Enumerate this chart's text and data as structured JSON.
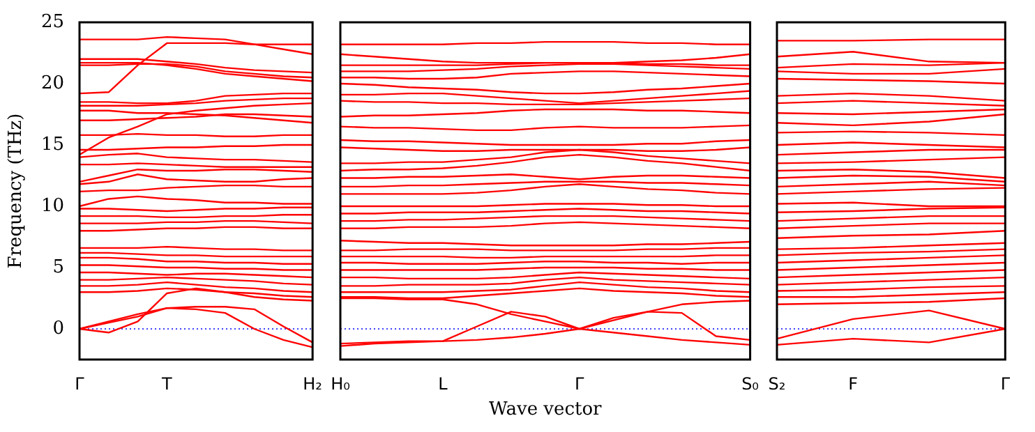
{
  "chart_data": [
    {
      "type": "line",
      "ylabel": "Frequency (THz)",
      "categories": [
        "Γ",
        null,
        null,
        "T",
        null,
        null,
        null,
        null,
        "H₂"
      ],
      "ylim": [
        -2.5,
        25
      ],
      "yticks": [
        0,
        5,
        10,
        15,
        20,
        25
      ],
      "ref_lines": [
        {
          "axis": "y",
          "value": 0,
          "label": null,
          "color": "#0000ff",
          "line_style": "dotted"
        }
      ],
      "series": [
        {
          "color": "#ff0000",
          "values": [
            0,
            0.6,
            1.2,
            1.7,
            1.6,
            1.3,
            0.0,
            -0.9,
            -1.5
          ]
        },
        {
          "color": "#ff0000",
          "values": [
            0,
            0.5,
            1.0,
            1.7,
            1.8,
            1.8,
            1.6,
            0.2,
            -1.1
          ]
        },
        {
          "color": "#ff0000",
          "values": [
            0,
            -0.3,
            0.6,
            2.9,
            3.3,
            3.0,
            2.6,
            2.4,
            2.3
          ]
        },
        {
          "color": "#ff0000",
          "values": [
            3.0,
            3.0,
            3.1,
            3.3,
            3.2,
            3.0,
            2.9,
            2.7,
            2.6
          ]
        },
        {
          "color": "#ff0000",
          "values": [
            3.5,
            3.5,
            3.6,
            3.8,
            3.6,
            3.4,
            3.3,
            3.1,
            3.0
          ]
        },
        {
          "color": "#ff0000",
          "values": [
            4.0,
            4.0,
            4.1,
            4.2,
            4.1,
            4.0,
            3.9,
            3.7,
            3.6
          ]
        },
        {
          "color": "#ff0000",
          "values": [
            4.6,
            4.6,
            4.5,
            4.4,
            4.5,
            4.5,
            4.4,
            4.3,
            4.2
          ]
        },
        {
          "color": "#ff0000",
          "values": [
            5.2,
            5.2,
            5.1,
            5.0,
            5.0,
            4.9,
            4.9,
            4.8,
            4.8
          ]
        },
        {
          "color": "#ff0000",
          "values": [
            5.8,
            5.8,
            5.7,
            5.5,
            5.5,
            5.4,
            5.4,
            5.3,
            5.3
          ]
        },
        {
          "color": "#ff0000",
          "values": [
            6.2,
            6.2,
            6.1,
            6.0,
            6.0,
            5.9,
            5.9,
            5.9,
            5.9
          ]
        },
        {
          "color": "#ff0000",
          "values": [
            6.6,
            6.6,
            6.6,
            6.7,
            6.6,
            6.5,
            6.5,
            6.4,
            6.4
          ]
        },
        {
          "color": "#ff0000",
          "values": [
            8.0,
            8.0,
            8.1,
            8.2,
            8.2,
            8.3,
            8.3,
            8.2,
            8.2
          ]
        },
        {
          "color": "#ff0000",
          "values": [
            8.6,
            8.6,
            8.6,
            8.7,
            8.7,
            8.8,
            8.8,
            8.7,
            8.6
          ]
        },
        {
          "color": "#ff0000",
          "values": [
            9.2,
            9.2,
            9.2,
            9.1,
            9.1,
            9.2,
            9.2,
            9.3,
            9.3
          ]
        },
        {
          "color": "#ff0000",
          "values": [
            9.8,
            9.8,
            9.7,
            9.6,
            9.7,
            9.8,
            9.8,
            9.9,
            9.9
          ]
        },
        {
          "color": "#ff0000",
          "values": [
            10.0,
            10.6,
            10.8,
            10.6,
            10.5,
            10.3,
            10.3,
            10.2,
            10.2
          ]
        },
        {
          "color": "#ff0000",
          "values": [
            11.2,
            11.3,
            11.3,
            11.5,
            11.6,
            11.7,
            11.7,
            11.6,
            11.6
          ]
        },
        {
          "color": "#ff0000",
          "values": [
            11.8,
            12.0,
            12.6,
            12.2,
            12.1,
            12.0,
            12.0,
            12.2,
            12.3
          ]
        },
        {
          "color": "#ff0000",
          "values": [
            12.0,
            12.5,
            13.0,
            12.9,
            12.9,
            13.0,
            13.0,
            12.9,
            12.8
          ]
        },
        {
          "color": "#ff0000",
          "values": [
            13.4,
            13.4,
            13.5,
            13.4,
            13.3,
            13.2,
            13.2,
            13.2,
            13.2
          ]
        },
        {
          "color": "#ff0000",
          "values": [
            14.0,
            14.2,
            14.3,
            14.0,
            13.9,
            13.8,
            13.8,
            13.7,
            13.6
          ]
        },
        {
          "color": "#ff0000",
          "values": [
            14.6,
            14.6,
            14.7,
            14.8,
            14.8,
            14.9,
            14.9,
            15.0,
            15.0
          ]
        },
        {
          "color": "#ff0000",
          "values": [
            14.2,
            15.6,
            16.5,
            17.5,
            17.8,
            18.0,
            18.2,
            18.3,
            18.4
          ]
        },
        {
          "color": "#ff0000",
          "values": [
            15.8,
            15.8,
            15.9,
            15.8,
            15.8,
            15.7,
            15.7,
            15.8,
            15.8
          ]
        },
        {
          "color": "#ff0000",
          "values": [
            17.0,
            17.0,
            17.1,
            17.2,
            17.3,
            17.5,
            17.5,
            17.4,
            17.3
          ]
        },
        {
          "color": "#ff0000",
          "values": [
            17.8,
            17.8,
            17.6,
            17.6,
            17.5,
            17.4,
            17.2,
            17.0,
            16.8
          ]
        },
        {
          "color": "#ff0000",
          "values": [
            18.2,
            18.2,
            18.2,
            18.3,
            18.4,
            18.6,
            18.7,
            18.8,
            18.8
          ]
        },
        {
          "color": "#ff0000",
          "values": [
            18.5,
            18.5,
            18.4,
            18.4,
            18.6,
            19.0,
            19.1,
            19.2,
            19.2
          ]
        },
        {
          "color": "#ff0000",
          "values": [
            19.2,
            19.3,
            21.5,
            23.3,
            23.3,
            23.3,
            23.2,
            23.2,
            23.2
          ]
        },
        {
          "color": "#ff0000",
          "values": [
            21.5,
            21.5,
            21.6,
            21.6,
            21.4,
            21.0,
            20.8,
            20.6,
            20.5
          ]
        },
        {
          "color": "#ff0000",
          "values": [
            22.0,
            22.0,
            22.0,
            21.8,
            21.6,
            21.3,
            21.1,
            21.0,
            20.9
          ]
        },
        {
          "color": "#ff0000",
          "values": [
            21.7,
            21.7,
            21.7,
            21.5,
            21.2,
            20.8,
            20.6,
            20.4,
            20.2
          ]
        },
        {
          "color": "#ff0000",
          "values": [
            23.6,
            23.6,
            23.6,
            23.8,
            23.7,
            23.6,
            23.2,
            22.8,
            22.4
          ]
        }
      ]
    },
    {
      "type": "line",
      "xlabel": "Wave vector",
      "categories": [
        "H₀",
        null,
        null,
        "L",
        null,
        null,
        null,
        "Γ",
        null,
        null,
        null,
        null,
        "S₀"
      ],
      "ylim": [
        -2.5,
        25
      ],
      "tick_labels": "x",
      "ref_lines": [
        {
          "axis": "y",
          "value": 0,
          "label": null,
          "color": "#0000ff",
          "line_style": "dotted"
        }
      ],
      "series": [
        {
          "color": "#ff0000",
          "values": [
            -1.2,
            -1.1,
            -1.0,
            -1.0,
            -0.9,
            -0.7,
            -0.4,
            0,
            -0.3,
            -0.6,
            -0.9,
            -1.1,
            -1.3
          ]
        },
        {
          "color": "#ff0000",
          "values": [
            -1.4,
            -1.2,
            -1.1,
            -1.0,
            0.2,
            1.4,
            1.0,
            0,
            0.9,
            1.4,
            1.3,
            -0.6,
            -0.9
          ]
        },
        {
          "color": "#ff0000",
          "values": [
            2.5,
            2.5,
            2.4,
            2.4,
            2.0,
            1.2,
            0.6,
            0,
            0.7,
            1.4,
            2.0,
            2.2,
            2.3
          ]
        },
        {
          "color": "#ff0000",
          "values": [
            2.6,
            2.6,
            2.5,
            2.5,
            2.7,
            2.9,
            3.1,
            3.3,
            3.1,
            3.0,
            2.9,
            2.7,
            2.6
          ]
        },
        {
          "color": "#ff0000",
          "values": [
            3.0,
            3.0,
            3.0,
            3.0,
            3.1,
            3.2,
            3.5,
            3.8,
            3.6,
            3.4,
            3.3,
            3.1,
            3.0
          ]
        },
        {
          "color": "#ff0000",
          "values": [
            3.5,
            3.5,
            3.6,
            3.6,
            3.6,
            3.7,
            4.0,
            4.2,
            4.0,
            3.9,
            3.8,
            3.7,
            3.6
          ]
        },
        {
          "color": "#ff0000",
          "values": [
            4.2,
            4.2,
            4.1,
            4.1,
            4.1,
            4.2,
            4.4,
            4.6,
            4.5,
            4.4,
            4.3,
            4.2,
            4.1
          ]
        },
        {
          "color": "#ff0000",
          "values": [
            4.8,
            4.8,
            4.8,
            4.8,
            4.8,
            4.9,
            5.0,
            5.0,
            5.0,
            4.9,
            4.9,
            4.8,
            4.8
          ]
        },
        {
          "color": "#ff0000",
          "values": [
            5.4,
            5.4,
            5.3,
            5.3,
            5.3,
            5.4,
            5.5,
            5.5,
            5.4,
            5.4,
            5.3,
            5.4,
            5.4
          ]
        },
        {
          "color": "#ff0000",
          "values": [
            5.9,
            5.9,
            5.9,
            5.9,
            5.8,
            5.8,
            5.9,
            5.9,
            5.9,
            5.9,
            5.9,
            6.0,
            6.0
          ]
        },
        {
          "color": "#ff0000",
          "values": [
            6.4,
            6.4,
            6.5,
            6.5,
            6.5,
            6.4,
            6.4,
            6.4,
            6.4,
            6.5,
            6.5,
            6.6,
            6.6
          ]
        },
        {
          "color": "#ff0000",
          "values": [
            7.2,
            7.1,
            7.0,
            7.0,
            6.9,
            6.8,
            6.8,
            6.8,
            6.8,
            6.9,
            6.9,
            7.0,
            7.1
          ]
        },
        {
          "color": "#ff0000",
          "values": [
            8.2,
            8.2,
            8.3,
            8.3,
            8.3,
            8.4,
            8.6,
            8.7,
            8.6,
            8.5,
            8.4,
            8.3,
            8.2
          ]
        },
        {
          "color": "#ff0000",
          "values": [
            8.8,
            8.8,
            8.9,
            8.9,
            9.0,
            9.1,
            9.2,
            9.2,
            9.2,
            9.1,
            9.0,
            8.9,
            8.8
          ]
        },
        {
          "color": "#ff0000",
          "values": [
            9.4,
            9.4,
            9.5,
            9.5,
            9.5,
            9.6,
            9.7,
            9.8,
            9.7,
            9.6,
            9.6,
            9.5,
            9.4
          ]
        },
        {
          "color": "#ff0000",
          "values": [
            10.0,
            10.0,
            10.0,
            10.0,
            10.0,
            10.1,
            10.2,
            10.2,
            10.2,
            10.1,
            10.1,
            10.0,
            10.0
          ]
        },
        {
          "color": "#ff0000",
          "values": [
            11.0,
            11.0,
            11.0,
            11.0,
            11.1,
            11.3,
            11.6,
            11.8,
            11.6,
            11.4,
            11.3,
            11.1,
            11.0
          ]
        },
        {
          "color": "#ff0000",
          "values": [
            11.6,
            11.6,
            11.7,
            11.7,
            11.8,
            11.9,
            12.0,
            12.0,
            12.0,
            11.9,
            11.9,
            11.8,
            11.7
          ]
        },
        {
          "color": "#ff0000",
          "values": [
            12.3,
            12.3,
            12.4,
            12.4,
            12.5,
            12.6,
            12.4,
            12.2,
            12.4,
            12.5,
            12.5,
            12.4,
            12.3
          ]
        },
        {
          "color": "#ff0000",
          "values": [
            12.9,
            13.0,
            13.0,
            13.1,
            13.3,
            13.6,
            14.0,
            14.2,
            14.0,
            13.7,
            13.5,
            13.2,
            12.9
          ]
        },
        {
          "color": "#ff0000",
          "values": [
            13.5,
            13.5,
            13.6,
            13.6,
            13.8,
            14.0,
            14.4,
            14.6,
            14.4,
            14.1,
            13.9,
            13.7,
            13.5
          ]
        },
        {
          "color": "#ff0000",
          "values": [
            14.8,
            14.7,
            14.6,
            14.5,
            14.5,
            14.6,
            14.6,
            14.6,
            14.6,
            14.5,
            14.5,
            14.6,
            14.8
          ]
        },
        {
          "color": "#ff0000",
          "values": [
            15.4,
            15.3,
            15.3,
            15.2,
            15.1,
            15.0,
            15.0,
            15.0,
            15.0,
            15.1,
            15.1,
            15.3,
            15.4
          ]
        },
        {
          "color": "#ff0000",
          "values": [
            16.5,
            16.4,
            16.4,
            16.3,
            16.2,
            16.2,
            16.4,
            16.5,
            16.4,
            16.4,
            16.4,
            16.5,
            16.6
          ]
        },
        {
          "color": "#ff0000",
          "values": [
            17.3,
            17.4,
            17.4,
            17.5,
            17.6,
            17.8,
            17.9,
            17.9,
            17.9,
            17.8,
            17.8,
            17.7,
            17.6
          ]
        },
        {
          "color": "#ff0000",
          "values": [
            18.6,
            18.5,
            18.5,
            18.4,
            18.4,
            18.3,
            18.3,
            18.3,
            18.4,
            18.5,
            18.6,
            18.7,
            18.8
          ]
        },
        {
          "color": "#ff0000",
          "values": [
            19.1,
            19.1,
            19.2,
            19.2,
            19.0,
            18.8,
            18.6,
            18.4,
            18.6,
            18.8,
            19.0,
            19.2,
            19.4
          ]
        },
        {
          "color": "#ff0000",
          "values": [
            20.0,
            19.9,
            19.7,
            19.6,
            19.5,
            19.3,
            19.2,
            19.2,
            19.3,
            19.5,
            19.6,
            19.8,
            20.0
          ]
        },
        {
          "color": "#ff0000",
          "values": [
            20.5,
            20.5,
            20.4,
            20.4,
            20.5,
            20.8,
            20.9,
            21.0,
            21.0,
            20.9,
            20.8,
            20.7,
            20.6
          ]
        },
        {
          "color": "#ff0000",
          "values": [
            21.0,
            21.0,
            21.0,
            21.1,
            21.2,
            21.4,
            21.5,
            21.6,
            21.6,
            21.5,
            21.4,
            21.3,
            21.2
          ]
        },
        {
          "color": "#ff0000",
          "values": [
            21.5,
            21.5,
            21.5,
            21.5,
            21.5,
            21.6,
            21.7,
            21.7,
            21.7,
            21.6,
            21.6,
            21.5,
            21.5
          ]
        },
        {
          "color": "#ff0000",
          "values": [
            22.4,
            22.2,
            22.0,
            21.8,
            21.7,
            21.7,
            21.7,
            21.7,
            21.7,
            21.8,
            21.9,
            22.1,
            22.4
          ]
        },
        {
          "color": "#ff0000",
          "values": [
            23.2,
            23.2,
            23.2,
            23.2,
            23.3,
            23.3,
            23.4,
            23.4,
            23.4,
            23.3,
            23.3,
            23.2,
            23.2
          ]
        }
      ]
    },
    {
      "type": "line",
      "categories": [
        "S₂",
        "F",
        null,
        "Γ"
      ],
      "ylim": [
        -2.5,
        25
      ],
      "tick_labels": "x",
      "ref_lines": [
        {
          "axis": "y",
          "value": 0,
          "label": null,
          "color": "#0000ff",
          "line_style": "dotted"
        }
      ],
      "series": [
        {
          "color": "#ff0000",
          "values": [
            -1.3,
            -0.8,
            -1.1,
            0
          ]
        },
        {
          "color": "#ff0000",
          "values": [
            -0.8,
            0.8,
            1.5,
            0
          ]
        },
        {
          "color": "#ff0000",
          "values": [
            2.0,
            2.1,
            2.2,
            2.5
          ]
        },
        {
          "color": "#ff0000",
          "values": [
            2.6,
            2.6,
            2.8,
            3.0
          ]
        },
        {
          "color": "#ff0000",
          "values": [
            3.1,
            3.2,
            3.4,
            3.5
          ]
        },
        {
          "color": "#ff0000",
          "values": [
            3.6,
            3.8,
            4.0,
            4.2
          ]
        },
        {
          "color": "#ff0000",
          "values": [
            4.2,
            4.4,
            4.6,
            4.8
          ]
        },
        {
          "color": "#ff0000",
          "values": [
            4.8,
            5.0,
            5.2,
            5.4
          ]
        },
        {
          "color": "#ff0000",
          "values": [
            5.4,
            5.6,
            5.8,
            6.0
          ]
        },
        {
          "color": "#ff0000",
          "values": [
            6.0,
            6.2,
            6.3,
            6.5
          ]
        },
        {
          "color": "#ff0000",
          "values": [
            6.5,
            6.6,
            6.8,
            7.0
          ]
        },
        {
          "color": "#ff0000",
          "values": [
            7.4,
            7.6,
            7.7,
            8.0
          ]
        },
        {
          "color": "#ff0000",
          "values": [
            8.2,
            8.4,
            8.6,
            8.6
          ]
        },
        {
          "color": "#ff0000",
          "values": [
            8.8,
            9.0,
            9.2,
            9.2
          ]
        },
        {
          "color": "#ff0000",
          "values": [
            9.5,
            9.6,
            9.8,
            9.9
          ]
        },
        {
          "color": "#ff0000",
          "values": [
            10.2,
            10.3,
            10.0,
            10.0
          ]
        },
        {
          "color": "#ff0000",
          "values": [
            11.0,
            11.2,
            11.4,
            11.5
          ]
        },
        {
          "color": "#ff0000",
          "values": [
            11.6,
            11.8,
            12.0,
            11.7
          ]
        },
        {
          "color": "#ff0000",
          "values": [
            12.3,
            12.5,
            12.4,
            12.0
          ]
        },
        {
          "color": "#ff0000",
          "values": [
            12.9,
            13.0,
            12.8,
            12.3
          ]
        },
        {
          "color": "#ff0000",
          "values": [
            13.5,
            13.6,
            13.8,
            14.0
          ]
        },
        {
          "color": "#ff0000",
          "values": [
            14.2,
            14.4,
            14.6,
            14.6
          ]
        },
        {
          "color": "#ff0000",
          "values": [
            15.0,
            15.2,
            15.0,
            14.8
          ]
        },
        {
          "color": "#ff0000",
          "values": [
            16.0,
            16.1,
            16.0,
            15.8
          ]
        },
        {
          "color": "#ff0000",
          "values": [
            16.8,
            16.6,
            16.9,
            17.5
          ]
        },
        {
          "color": "#ff0000",
          "values": [
            17.6,
            17.5,
            17.7,
            17.9
          ]
        },
        {
          "color": "#ff0000",
          "values": [
            18.4,
            18.6,
            18.4,
            18.2
          ]
        },
        {
          "color": "#ff0000",
          "values": [
            19.0,
            19.2,
            19.0,
            18.6
          ]
        },
        {
          "color": "#ff0000",
          "values": [
            20.4,
            20.3,
            20.2,
            20.0
          ]
        },
        {
          "color": "#ff0000",
          "values": [
            21.0,
            20.8,
            20.8,
            21.2
          ]
        },
        {
          "color": "#ff0000",
          "values": [
            21.3,
            21.6,
            21.5,
            21.7
          ]
        },
        {
          "color": "#ff0000",
          "values": [
            22.2,
            22.6,
            21.8,
            21.7
          ]
        },
        {
          "color": "#ff0000",
          "values": [
            23.5,
            23.5,
            23.6,
            23.6
          ]
        }
      ]
    }
  ]
}
